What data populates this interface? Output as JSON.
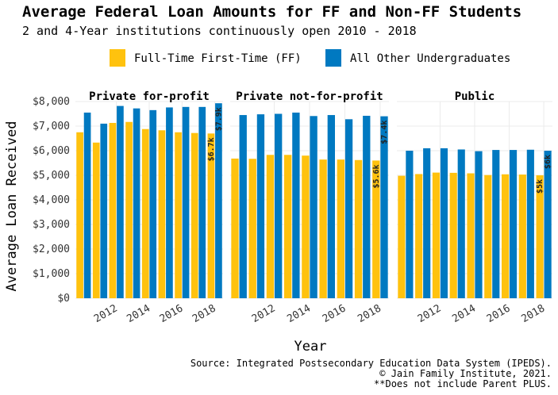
{
  "title": "Average Federal Loan Amounts for FF and Non-FF Students",
  "subtitle": "2 and 4-Year institutions continuously open 2010 - 2018",
  "caption": [
    "Source: Integrated Postsecondary Education Data System (IPEDS).",
    "© Jain Family Institute, 2021.",
    "**Does not include Parent PLUS."
  ],
  "colors": {
    "ff": "#FFC20E",
    "other": "#0079C1"
  },
  "chart_data": {
    "type": "bar",
    "title": "Average Federal Loan Amounts for FF and Non-FF Students",
    "subtitle": "2 and 4-Year institutions continuously open 2010 - 2018",
    "xlabel": "Year",
    "ylabel": "Average Loan Received",
    "ylim": [
      0,
      8000
    ],
    "yticks": [
      "$0",
      "$1,000",
      "$2,000",
      "$3,000",
      "$4,000",
      "$5,000",
      "$6,000",
      "$7,000",
      "$8,000"
    ],
    "xticks": [
      "2012",
      "2014",
      "2016",
      "2018"
    ],
    "legend_position": "top",
    "grid": true,
    "categories": [
      2010,
      2011,
      2012,
      2013,
      2014,
      2015,
      2016,
      2017,
      2018
    ],
    "series_names": [
      "Full-Time First-Time (FF)",
      "All Other Undergraduates"
    ],
    "panels": [
      {
        "name": "Private for-profit",
        "series": [
          {
            "name": "Full-Time First-Time (FF)",
            "values": [
              6750,
              6330,
              7130,
              7170,
              6880,
              6830,
              6750,
              6720,
              6700
            ]
          },
          {
            "name": "All Other Undergraduates",
            "values": [
              7550,
              7100,
              7820,
              7720,
              7650,
              7760,
              7780,
              7780,
              7930
            ]
          }
        ],
        "labels": {
          "ff": "$6.7k",
          "other": "$7.9k"
        }
      },
      {
        "name": "Private not-for-profit",
        "series": [
          {
            "name": "Full-Time First-Time (FF)",
            "values": [
              5680,
              5670,
              5830,
              5830,
              5800,
              5640,
              5640,
              5620,
              5600
            ]
          },
          {
            "name": "All Other Undergraduates",
            "values": [
              7450,
              7480,
              7500,
              7550,
              7410,
              7450,
              7280,
              7420,
              7400
            ]
          }
        ],
        "labels": {
          "ff": "$5.6k",
          "other": "$7.4k"
        }
      },
      {
        "name": "Public",
        "series": [
          {
            "name": "Full-Time First-Time (FF)",
            "values": [
              4980,
              5050,
              5110,
              5100,
              5080,
              5010,
              5040,
              5030,
              5000
            ]
          },
          {
            "name": "All Other Undergraduates",
            "values": [
              6000,
              6100,
              6100,
              6050,
              5980,
              6030,
              6030,
              6040,
              6000
            ]
          }
        ],
        "labels": {
          "ff": "$5k",
          "other": "$6k"
        }
      }
    ]
  }
}
